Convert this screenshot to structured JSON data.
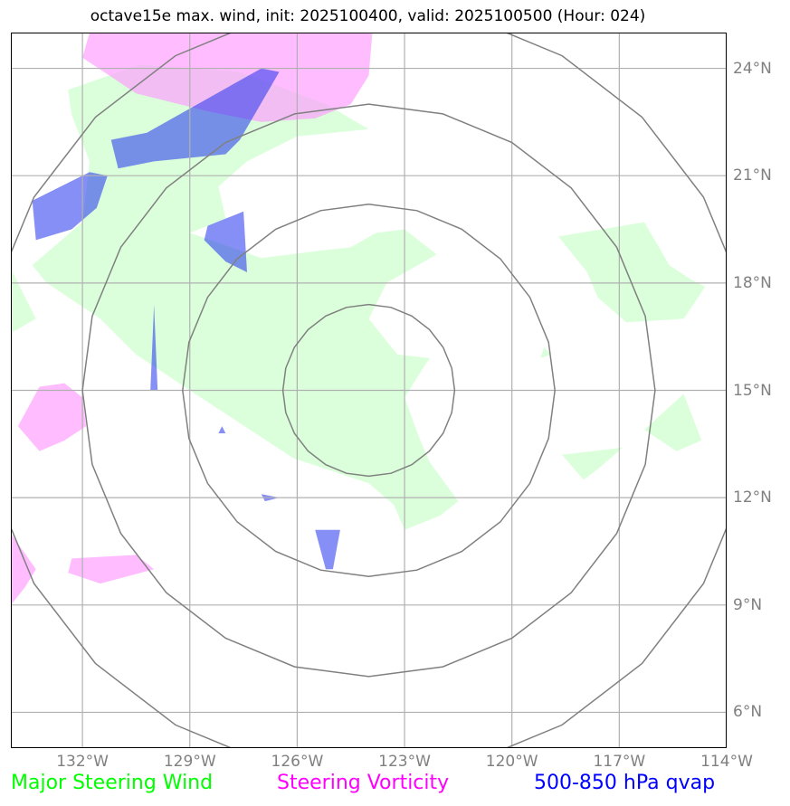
{
  "title": "octave15e max. wind, init: 2025100400, valid: 2025100500 (Hour: 024)",
  "map": {
    "lon_range": [
      -134,
      -114
    ],
    "lat_range": [
      5,
      25
    ],
    "lat_ticks": [
      {
        "value": 24,
        "label": "24°N"
      },
      {
        "value": 21,
        "label": "21°N"
      },
      {
        "value": 18,
        "label": "18°N"
      },
      {
        "value": 15,
        "label": "15°N"
      },
      {
        "value": 12,
        "label": "12°N"
      },
      {
        "value": 9,
        "label": "9°N"
      },
      {
        "value": 6,
        "label": "6°N"
      }
    ],
    "lon_ticks": [
      {
        "value": -132,
        "label": "132°W"
      },
      {
        "value": -129,
        "label": "129°W"
      },
      {
        "value": -126,
        "label": "126°W"
      },
      {
        "value": -123,
        "label": "123°W"
      },
      {
        "value": -120,
        "label": "120°W"
      },
      {
        "value": -117,
        "label": "117°W"
      },
      {
        "value": -114,
        "label": "114°W"
      }
    ],
    "range_rings": {
      "center": {
        "lon": -124,
        "lat": 15
      },
      "radii_deg_lat": [
        2.4,
        5.2,
        8.0,
        10.8
      ],
      "color": "#808080"
    },
    "grid_color": "#b0b0b0"
  },
  "legend": [
    {
      "label": "Major Steering Wind",
      "color": "#00ff00"
    },
    {
      "label": "Steering Vorticity",
      "color": "#ff00ff"
    },
    {
      "label": "500-850 hPa qvap",
      "color": "#0000ff"
    }
  ],
  "layers": {
    "green": {
      "color": "#ccffcc",
      "opacity": 0.7,
      "polygons": [
        [
          [
            -132.4,
            23.4
          ],
          [
            -130.4,
            24.1
          ],
          [
            -127.6,
            23.9
          ],
          [
            -125.2,
            23.0
          ],
          [
            -124.0,
            22.3
          ],
          [
            -126.0,
            22.1
          ],
          [
            -127.4,
            21.4
          ],
          [
            -128.2,
            20.7
          ],
          [
            -128.0,
            19.8
          ],
          [
            -129.0,
            19.4
          ],
          [
            -127.0,
            18.7
          ],
          [
            -125.4,
            18.9
          ],
          [
            -124.5,
            19.0
          ],
          [
            -123.8,
            19.4
          ],
          [
            -123.0,
            19.5
          ],
          [
            -122.1,
            18.8
          ],
          [
            -123.5,
            18.0
          ],
          [
            -124.0,
            17.0
          ],
          [
            -123.2,
            16.0
          ],
          [
            -122.3,
            15.9
          ],
          [
            -123.0,
            14.8
          ],
          [
            -122.6,
            13.7
          ],
          [
            -122.3,
            13.0
          ],
          [
            -121.5,
            11.9
          ],
          [
            -122.0,
            11.5
          ],
          [
            -123.0,
            11.1
          ],
          [
            -123.3,
            11.8
          ],
          [
            -124.0,
            12.4
          ],
          [
            -126.1,
            13.1
          ],
          [
            -129.0,
            15.0
          ],
          [
            -130.5,
            16.0
          ],
          [
            -131.5,
            17.0
          ],
          [
            -133.0,
            18.0
          ],
          [
            -133.4,
            18.5
          ],
          [
            -132.0,
            19.7
          ],
          [
            -131.8,
            21.4
          ],
          [
            -132.3,
            22.7
          ]
        ],
        [
          [
            -134.0,
            18.4
          ],
          [
            -133.3,
            17.0
          ],
          [
            -134.0,
            16.6
          ]
        ],
        [
          [
            -116.3,
            19.7
          ],
          [
            -115.6,
            18.5
          ],
          [
            -115.0,
            18.1
          ],
          [
            -114.6,
            17.9
          ],
          [
            -114.8,
            17.6
          ],
          [
            -115.2,
            17.0
          ],
          [
            -116.8,
            16.9
          ],
          [
            -117.6,
            17.6
          ],
          [
            -117.9,
            18.3
          ],
          [
            -118.7,
            19.3
          ]
        ],
        [
          [
            -115.2,
            14.9
          ],
          [
            -114.7,
            13.6
          ],
          [
            -115.4,
            13.3
          ],
          [
            -116.3,
            13.9
          ]
        ],
        [
          [
            -118.6,
            13.2
          ],
          [
            -116.9,
            13.4
          ],
          [
            -117.6,
            12.8
          ],
          [
            -118.0,
            12.5
          ]
        ],
        [
          [
            -119.1,
            16.2
          ],
          [
            -118.9,
            16.0
          ],
          [
            -119.2,
            15.9
          ]
        ]
      ]
    },
    "pink": {
      "color": "#ff99ff",
      "opacity": 0.65,
      "polygons": [
        [
          [
            -131.8,
            25.0
          ],
          [
            -123.9,
            25.0
          ],
          [
            -124.0,
            23.8
          ],
          [
            -124.5,
            23.0
          ],
          [
            -125.5,
            22.6
          ],
          [
            -127.0,
            22.5
          ],
          [
            -128.5,
            22.8
          ],
          [
            -130.5,
            23.3
          ],
          [
            -132.0,
            24.3
          ]
        ],
        [
          [
            -133.2,
            15.1
          ],
          [
            -132.5,
            15.2
          ],
          [
            -132.0,
            14.8
          ],
          [
            -131.9,
            14.0
          ],
          [
            -132.5,
            13.6
          ],
          [
            -133.2,
            13.3
          ],
          [
            -133.8,
            14.0
          ]
        ],
        [
          [
            -134.0,
            11.0
          ],
          [
            -133.3,
            10.0
          ],
          [
            -133.6,
            9.5
          ],
          [
            -134.0,
            9.0
          ]
        ],
        [
          [
            -132.3,
            10.3
          ],
          [
            -130.5,
            10.4
          ],
          [
            -130.0,
            10.0
          ],
          [
            -131.5,
            9.6
          ],
          [
            -132.4,
            9.9
          ]
        ]
      ]
    },
    "blue": {
      "color": "#2233ee",
      "opacity": 0.55,
      "polygons": [
        [
          [
            -130.2,
            22.2
          ],
          [
            -127.0,
            24.0
          ],
          [
            -126.5,
            23.9
          ],
          [
            -127.6,
            22.0
          ],
          [
            -128.0,
            21.6
          ],
          [
            -130.0,
            21.4
          ],
          [
            -131.0,
            21.2
          ],
          [
            -131.2,
            22.0
          ]
        ],
        [
          [
            -131.8,
            21.1
          ],
          [
            -131.3,
            21.0
          ],
          [
            -131.6,
            20.1
          ],
          [
            -132.3,
            19.5
          ],
          [
            -133.3,
            19.2
          ],
          [
            -133.4,
            20.3
          ]
        ],
        [
          [
            -128.5,
            19.6
          ],
          [
            -127.5,
            20.0
          ],
          [
            -127.4,
            18.3
          ],
          [
            -128.0,
            18.6
          ],
          [
            -128.6,
            19.2
          ]
        ],
        [
          [
            -130.0,
            17.4
          ],
          [
            -129.9,
            15.0
          ],
          [
            -130.1,
            15.0
          ]
        ],
        [
          [
            -125.5,
            11.1
          ],
          [
            -124.8,
            11.1
          ],
          [
            -125.0,
            10.0
          ],
          [
            -125.2,
            10.0
          ]
        ],
        [
          [
            -127.0,
            12.1
          ],
          [
            -126.5,
            12.0
          ],
          [
            -126.9,
            11.9
          ]
        ],
        [
          [
            -128.1,
            14.0
          ],
          [
            -128.0,
            13.8
          ],
          [
            -128.2,
            13.8
          ]
        ]
      ]
    }
  }
}
